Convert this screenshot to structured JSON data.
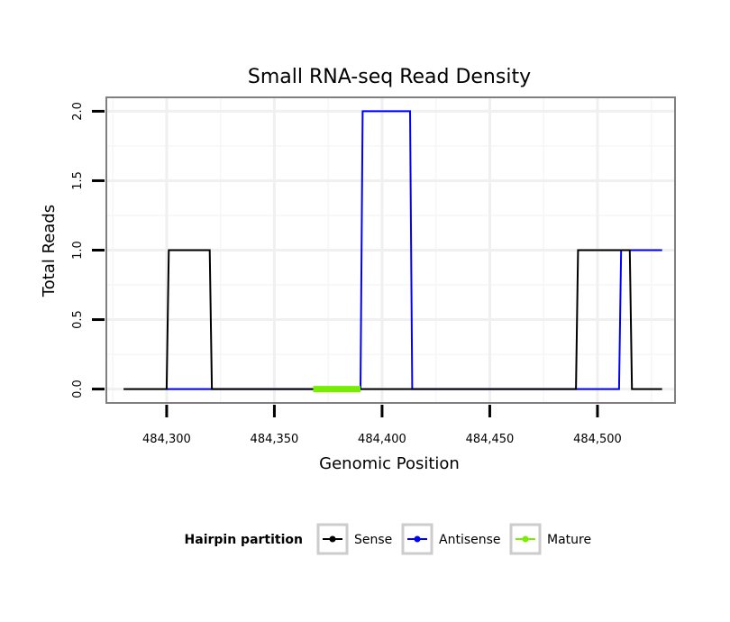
{
  "chart_data": {
    "type": "line",
    "title": "Small RNA-seq Read Density",
    "xlabel": "Genomic Position",
    "ylabel": "Total Reads",
    "xlim": [
      484272,
      484536
    ],
    "ylim": [
      -0.1,
      2.1
    ],
    "x_ticks": [
      484300,
      484350,
      484400,
      484450,
      484500
    ],
    "x_tick_labels": [
      "484,300",
      "484,350",
      "484,400",
      "484,450",
      "484,500"
    ],
    "y_ticks": [
      0.0,
      0.5,
      1.0,
      1.5,
      2.0
    ],
    "y_tick_labels": [
      "0.0",
      "0.5",
      "1.0",
      "1.5",
      "2.0"
    ],
    "grid": true,
    "legend": {
      "title": "Hairpin partition",
      "position": "bottom",
      "entries": [
        "Sense",
        "Antisense",
        "Mature"
      ]
    },
    "series": [
      {
        "name": "Sense",
        "color": "#000000",
        "x": [
          484280,
          484300,
          484301,
          484320,
          484321,
          484490,
          484491,
          484515,
          484516,
          484530
        ],
        "y": [
          0,
          0,
          1,
          1,
          0,
          0,
          1,
          1,
          0,
          0
        ]
      },
      {
        "name": "Antisense",
        "color": "#0000ff",
        "x": [
          484300,
          484320,
          484390,
          484391,
          484413,
          484414,
          484510,
          484511,
          484530
        ],
        "y": [
          0,
          0,
          0,
          2,
          2,
          0,
          0,
          1,
          1
        ]
      },
      {
        "name": "Mature",
        "color": "#77ee00",
        "x": [
          484368,
          484390
        ],
        "y": [
          0,
          0
        ]
      }
    ]
  }
}
